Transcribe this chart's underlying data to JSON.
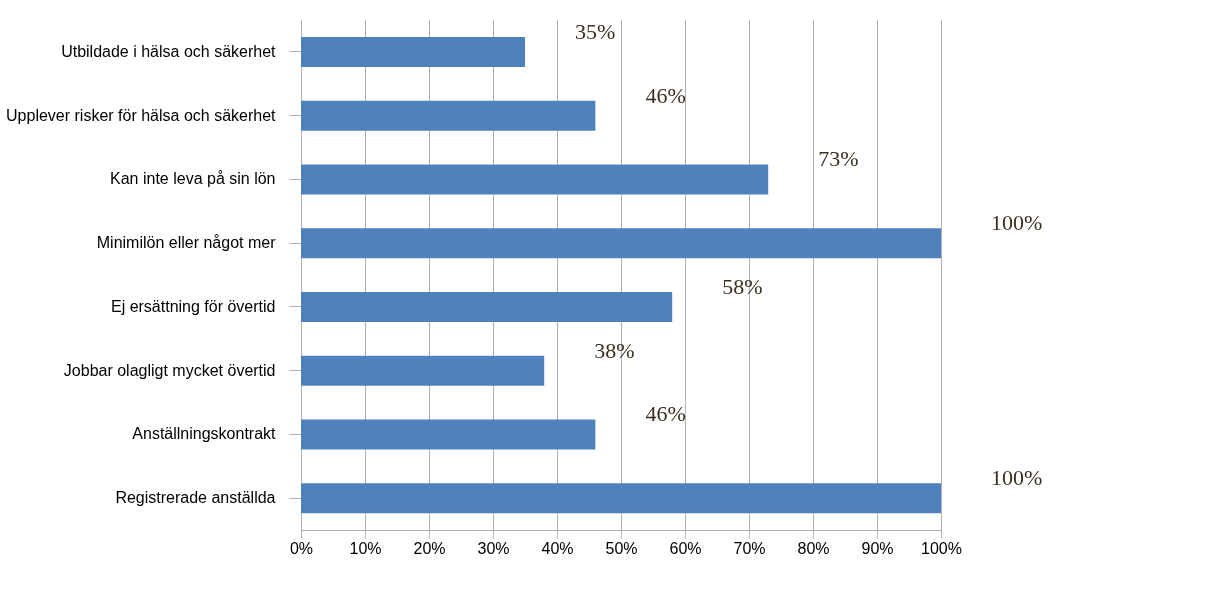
{
  "chart_data": {
    "type": "bar",
    "orientation": "horizontal",
    "categories": [
      "Utbildade i hälsa och säkerhet",
      "Upplever risker för hälsa och säkerhet",
      "Kan inte leva på sin lön",
      "Minimilön eller något mer",
      "Ej ersättning för övertid",
      "Jobbar olagligt mycket övertid",
      "Anställningskontrakt",
      "Registrerade anställda"
    ],
    "values": [
      35,
      46,
      73,
      100,
      58,
      38,
      46,
      100
    ],
    "value_labels": [
      "35%",
      "46%",
      "73%",
      "100%",
      "58%",
      "38%",
      "46%",
      "100%"
    ],
    "color": "#4f81bd",
    "xlim": [
      0,
      100
    ],
    "xticks": [
      {
        "value": 0,
        "label": "0%"
      },
      {
        "value": 10,
        "label": "10%"
      },
      {
        "value": 20,
        "label": "20%"
      },
      {
        "value": 30,
        "label": "30%"
      },
      {
        "value": 40,
        "label": "40%"
      },
      {
        "value": 50,
        "label": "50%"
      },
      {
        "value": 60,
        "label": "60%"
      },
      {
        "value": 70,
        "label": "70%"
      },
      {
        "value": 80,
        "label": "80%"
      },
      {
        "value": 90,
        "label": "90%"
      },
      {
        "value": 100,
        "label": "100%"
      }
    ],
    "grid": "x"
  }
}
